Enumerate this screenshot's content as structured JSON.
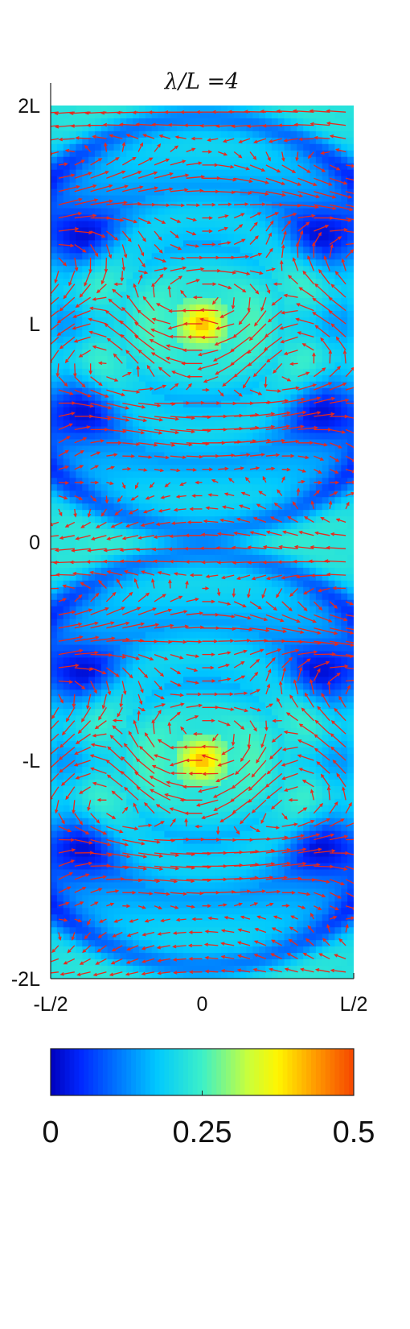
{
  "chart_data": {
    "type": "heatmap",
    "title": "λ/L =4",
    "subtype": "scalar field magnitude with overlaid vector (quiver) field",
    "xlabel": "",
    "ylabel": "",
    "x_ticks": [
      {
        "value": -0.5,
        "label": "-L/2"
      },
      {
        "value": 0,
        "label": "0"
      },
      {
        "value": 0.5,
        "label": "L/2"
      }
    ],
    "y_ticks": [
      {
        "value": 2,
        "label": "2L"
      },
      {
        "value": 1,
        "label": "L"
      },
      {
        "value": 0,
        "label": "0"
      },
      {
        "value": -1,
        "label": "-L"
      },
      {
        "value": -2,
        "label": "-2L"
      }
    ],
    "xlim": [
      -0.5,
      0.5
    ],
    "ylim": [
      -2,
      2
    ],
    "vortex_centers": [
      [
        0,
        1
      ],
      [
        0,
        -1
      ]
    ],
    "colorbar": {
      "orientation": "horizontal",
      "range": [
        0,
        0.5
      ],
      "ticks": [
        {
          "value": 0,
          "label": "0"
        },
        {
          "value": 0.25,
          "label": "0.25"
        },
        {
          "value": 0.5,
          "label": "0.5"
        }
      ],
      "colormap": "jet"
    },
    "arrow_color": "#e8291c",
    "grid": false
  }
}
